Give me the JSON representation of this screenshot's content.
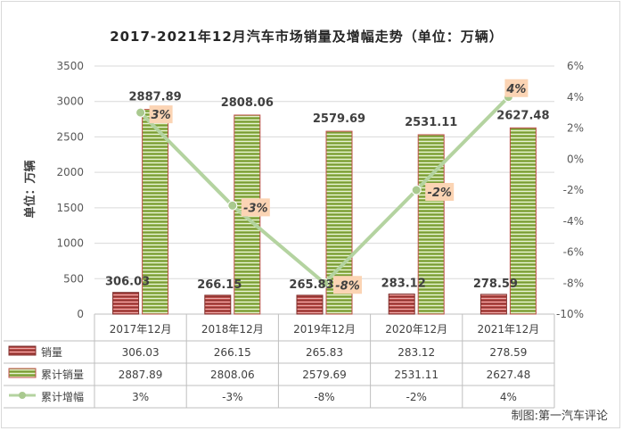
{
  "chart_data": {
    "type": "bar",
    "title": "2017-2021年12月汽车市场销量及增幅走势（单位：万辆）",
    "ylabel": "单位：万辆",
    "categories": [
      "2017年12月",
      "2018年12月",
      "2019年12月",
      "2020年12月",
      "2021年12月"
    ],
    "ylim": [
      0,
      3500
    ],
    "y_ticks": [
      "0",
      "500",
      "1000",
      "1500",
      "2000",
      "2500",
      "3000",
      "3500"
    ],
    "y2lim": [
      -10,
      6
    ],
    "y2_ticks": [
      "-10%",
      "-8%",
      "-6%",
      "-4%",
      "-2%",
      "0%",
      "2%",
      "4%",
      "6%"
    ],
    "grid": true,
    "legend": "bottom-table",
    "series": [
      {
        "name": "销量",
        "type": "bar",
        "axis": "left",
        "values": [
          306.03,
          266.15,
          265.83,
          283.12,
          278.59
        ],
        "labels": [
          "306.03",
          "266.15",
          "265.83",
          "283.12",
          "278.59"
        ]
      },
      {
        "name": "累计销量",
        "type": "bar",
        "axis": "left",
        "values": [
          2887.89,
          2808.06,
          2579.69,
          2531.11,
          2627.48
        ],
        "labels": [
          "2887.89",
          "2808.06",
          "2579.69",
          "2531.11",
          "2627.48"
        ]
      },
      {
        "name": "累计增幅",
        "type": "line",
        "axis": "right",
        "values": [
          3,
          -3,
          -8,
          -2,
          4
        ],
        "labels": [
          "3%",
          "-3%",
          "-8%",
          "-2%",
          "4%"
        ]
      }
    ],
    "colors": {
      "bar1_fill": "#c0504d",
      "bar1_stroke": "#7f2f2c",
      "bar2_fill": "#9bbb59",
      "bar2_stroke": "#c0504d",
      "line": "#b4d3a0",
      "marker": "#a9c98f",
      "pct_label_bg": "#fbd4b4",
      "grid": "#d9d9d9"
    }
  },
  "credit": "制图:第一汽车评论"
}
